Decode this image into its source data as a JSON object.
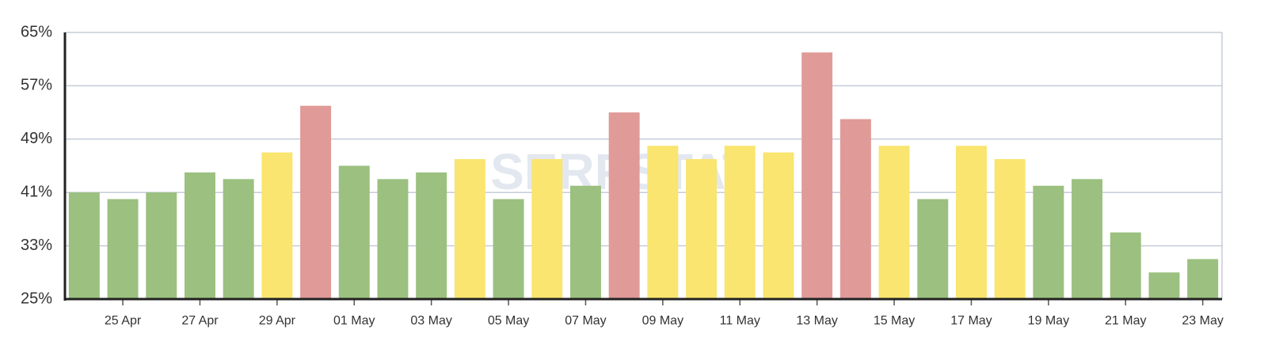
{
  "chart_data": {
    "type": "bar",
    "watermark": "SERPSTAT",
    "categories": [
      null,
      "25 Apr",
      null,
      "27 Apr",
      null,
      "29 Apr",
      null,
      "01 May",
      null,
      "03 May",
      null,
      "05 May",
      null,
      "07 May",
      null,
      "09 May",
      null,
      "11 May",
      null,
      "13 May",
      null,
      "15 May",
      null,
      "17 May",
      null,
      "19 May",
      null,
      "21 May",
      null,
      "23 May"
    ],
    "values": [
      41,
      40,
      41,
      44,
      43,
      47,
      54,
      45,
      43,
      44,
      46,
      40,
      46,
      42,
      53,
      48,
      46,
      48,
      47,
      62,
      52,
      48,
      40,
      48,
      46,
      42,
      43,
      35,
      29,
      31
    ],
    "colors": [
      "#9bc07f",
      "#9bc07f",
      "#9bc07f",
      "#9bc07f",
      "#9bc07f",
      "#f9e56f",
      "#e09a98",
      "#9bc07f",
      "#9bc07f",
      "#9bc07f",
      "#f9e56f",
      "#9bc07f",
      "#f9e56f",
      "#9bc07f",
      "#e09a98",
      "#f9e56f",
      "#f9e56f",
      "#f9e56f",
      "#f9e56f",
      "#e09a98",
      "#e09a98",
      "#f9e56f",
      "#9bc07f",
      "#f9e56f",
      "#f9e56f",
      "#9bc07f",
      "#9bc07f",
      "#9bc07f",
      "#9bc07f",
      "#9bc07f"
    ],
    "ylim": [
      25,
      65
    ],
    "yticks": [
      {
        "value": 25,
        "label": "25%"
      },
      {
        "value": 33,
        "label": "33%"
      },
      {
        "value": 41,
        "label": "41%"
      },
      {
        "value": 49,
        "label": "49%"
      },
      {
        "value": 57,
        "label": "57%"
      },
      {
        "value": 65,
        "label": "65%"
      }
    ],
    "grid": true
  }
}
